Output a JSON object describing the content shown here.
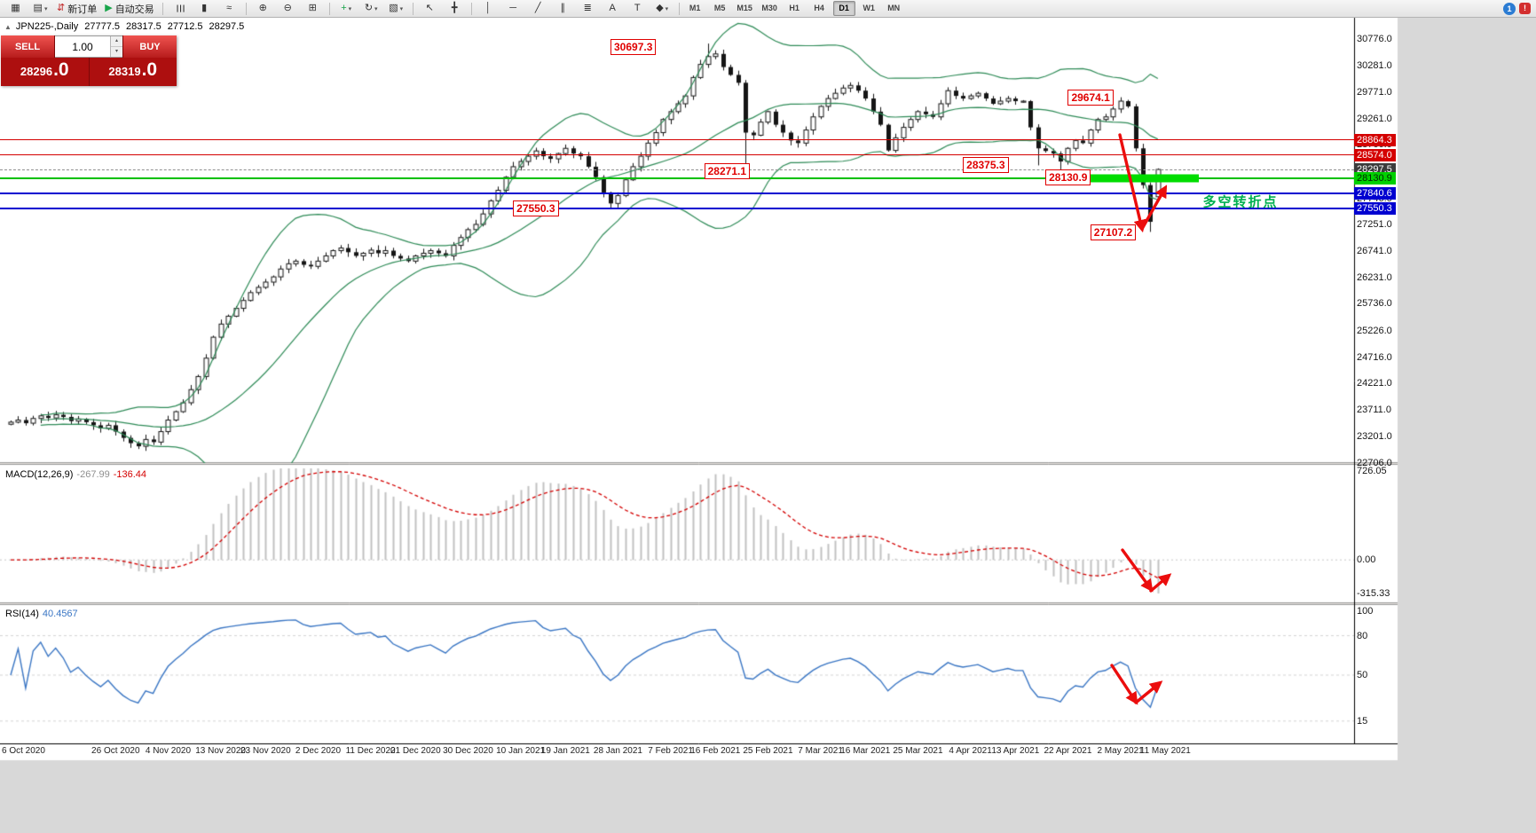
{
  "colors": {
    "accent_red": "#d40000",
    "annotation_red": "#e00000",
    "arrow_red": "#eb0d0d",
    "line_blue": "#0000d0",
    "line_green": "#00c000",
    "thick_bar_green": "#00dd00",
    "bb_green": "#2e8b57",
    "rsi_blue": "#3a76c4",
    "macd_signal": "#d40000",
    "hist_gray": "#c2c2c2"
  },
  "toolbar": {
    "caret_glyph": "▾",
    "items": [
      {
        "name": "new-chart",
        "glyph": "▦"
      },
      {
        "name": "profiles",
        "glyph": "▤",
        "caret": true
      },
      {
        "name": "new-order",
        "glyph": "⇵",
        "label": "新订单",
        "glyph_color": "#c02020"
      },
      {
        "name": "auto-trading",
        "glyph": "▶",
        "label": "自动交易",
        "glyph_color": "#18a54a"
      },
      {
        "sep": true
      },
      {
        "name": "bars-mode",
        "glyph": "☰",
        "rot": true
      },
      {
        "name": "candles-mode",
        "glyph": "▮"
      },
      {
        "name": "line-mode",
        "glyph": "≈"
      },
      {
        "sep": true
      },
      {
        "name": "zoom-in",
        "glyph": "⊕"
      },
      {
        "name": "zoom-out",
        "glyph": "⊖"
      },
      {
        "name": "tile-windows",
        "glyph": "⊞"
      },
      {
        "sep": true
      },
      {
        "name": "indicators",
        "glyph": "+",
        "glyph_color": "#18a54a",
        "caret": true
      },
      {
        "name": "periods",
        "glyph": "↻",
        "caret": true
      },
      {
        "name": "templates",
        "glyph": "▧",
        "caret": true
      },
      {
        "sep": true
      },
      {
        "name": "cursor",
        "glyph": "↖"
      },
      {
        "name": "crosshair",
        "glyph": "╋"
      },
      {
        "sep": true
      },
      {
        "name": "vertical-line",
        "glyph": "│"
      },
      {
        "name": "horizontal-line",
        "glyph": "─"
      },
      {
        "name": "trendline",
        "glyph": "╱"
      },
      {
        "name": "channel",
        "glyph": "∥"
      },
      {
        "name": "fibonacci",
        "glyph": "≣"
      },
      {
        "name": "text",
        "glyph": "A"
      },
      {
        "name": "text-label",
        "glyph": "T"
      },
      {
        "name": "shapes",
        "glyph": "◆",
        "caret": true
      },
      {
        "sep": true
      }
    ],
    "timeframes": [
      {
        "label": "M1"
      },
      {
        "label": "M5"
      },
      {
        "label": "M15"
      },
      {
        "label": "M30"
      },
      {
        "label": "H1"
      },
      {
        "label": "H4"
      },
      {
        "label": "D1",
        "active": true
      },
      {
        "label": "W1"
      },
      {
        "label": "MN"
      }
    ],
    "right": [
      {
        "name": "chart-profile-badge",
        "label": "1"
      },
      {
        "name": "notification",
        "label": "!"
      }
    ]
  },
  "quote": {
    "collapse_icon": "▲",
    "symbol": "JPN225-,Daily",
    "open": "27777.5",
    "high": "28317.5",
    "low": "27712.5",
    "close": "28297.5"
  },
  "one_click": {
    "sell_label": "SELL",
    "buy_label": "BUY",
    "volume": "1.00",
    "spin_up": "▴",
    "spin_down": "▾",
    "sell_price_int": "28296",
    "sell_price_dec": ".0",
    "buy_price_int": "28319",
    "buy_price_dec": ".0"
  },
  "chart_data": {
    "type": "candlestick",
    "title": "JPN225- Daily",
    "symbol": "JPN225-",
    "period": "Daily",
    "ylim": [
      22700,
      31190
    ],
    "closes": [
      23480,
      23520,
      23460,
      23550,
      23600,
      23560,
      23620,
      23580,
      23500,
      23540,
      23480,
      23420,
      23360,
      23420,
      23300,
      23180,
      23080,
      23020,
      23150,
      23100,
      23300,
      23520,
      23680,
      23850,
      24100,
      24350,
      24700,
      25100,
      25350,
      25500,
      25650,
      25800,
      25950,
      26050,
      26150,
      26250,
      26400,
      26500,
      26550,
      26480,
      26450,
      26550,
      26650,
      26750,
      26800,
      26720,
      26650,
      26700,
      26760,
      26700,
      26750,
      26650,
      26600,
      26550,
      26650,
      26700,
      26750,
      26700,
      26650,
      26850,
      27000,
      27150,
      27250,
      27450,
      27700,
      27900,
      28150,
      28350,
      28450,
      28550,
      28650,
      28550,
      28500,
      28600,
      28700,
      28600,
      28550,
      28350,
      28150,
      27850,
      27650,
      27800,
      28100,
      28350,
      28550,
      28800,
      29000,
      29250,
      29400,
      29550,
      29700,
      30050,
      30300,
      30450,
      30500,
      30250,
      30100,
      29950,
      29000,
      28950,
      29200,
      29400,
      29150,
      29000,
      28850,
      28800,
      29050,
      29300,
      29500,
      29650,
      29750,
      29850,
      29900,
      29800,
      29650,
      29400,
      29150,
      28660,
      28900,
      29100,
      29250,
      29400,
      29350,
      29300,
      29550,
      29800,
      29700,
      29650,
      29700,
      29750,
      29650,
      29550,
      29600,
      29650,
      29600,
      29600,
      29100,
      28700,
      28650,
      28600,
      28450,
      28700,
      28850,
      28800,
      29050,
      29250,
      29300,
      29450,
      29600,
      29500,
      28700,
      28000,
      27300,
      28297.5
    ],
    "overrides": [
      {
        "i": 80,
        "low": 27550.3
      },
      {
        "i": 93,
        "high": 30697.3
      },
      {
        "i": 98,
        "low": 28271.1
      },
      {
        "i": 137,
        "low": 28375.3
      },
      {
        "i": 140,
        "low": 28130.9
      },
      {
        "i": 148,
        "high": 29674.1
      },
      {
        "i": 152,
        "low": 27107.2
      },
      {
        "i": 153,
        "open": 27777.5,
        "high": 28317.5,
        "low": 27712.5,
        "close": 28297.5
      }
    ],
    "bollinger": {
      "period": 20,
      "deviation": 2
    },
    "macd": {
      "label": "MACD(12,26,9)",
      "value_main": "-267.99",
      "value_signal": "-136.44",
      "range": [
        -315.33,
        726.05
      ],
      "scale": [
        {
          "text": "726.05",
          "value": 726.05
        },
        {
          "text": "0.00",
          "value": 0
        },
        {
          "text": "-315.33",
          "value": -315.33
        }
      ]
    },
    "rsi": {
      "label": "RSI(14)",
      "value": "40.4567",
      "range": [
        0,
        100
      ],
      "scale": [
        {
          "text": "100",
          "value": 100
        },
        {
          "text": "80",
          "value": 80
        },
        {
          "text": "50",
          "value": 50
        },
        {
          "text": "15",
          "value": 15
        }
      ]
    },
    "price_axis": {
      "labels": [
        {
          "text": "30776.0",
          "price": 30776.0
        },
        {
          "text": "30281.0",
          "price": 30281.0
        },
        {
          "text": "29771.0",
          "price": 29771.0
        },
        {
          "text": "29261.0",
          "price": 29261.0
        },
        {
          "text": "28766.0",
          "price": 28766.0
        },
        {
          "text": "27746.0",
          "price": 27746.0
        },
        {
          "text": "27251.0",
          "price": 27251.0
        },
        {
          "text": "26741.0",
          "price": 26741.0
        },
        {
          "text": "26231.0",
          "price": 26231.0
        },
        {
          "text": "25736.0",
          "price": 25736.0
        },
        {
          "text": "25226.0",
          "price": 25226.0
        },
        {
          "text": "24716.0",
          "price": 24716.0
        },
        {
          "text": "24221.0",
          "price": 24221.0
        },
        {
          "text": "23711.0",
          "price": 23711.0
        },
        {
          "text": "23201.0",
          "price": 23201.0
        },
        {
          "text": "22706.0",
          "price": 22706.0
        }
      ],
      "badges": [
        {
          "text": "28864.3",
          "price": 28864.3,
          "bg": "#d40000",
          "fg": "#ffffff"
        },
        {
          "text": "28574.0",
          "price": 28574.0,
          "bg": "#d40000",
          "fg": "#ffffff"
        },
        {
          "text": "28297.5",
          "price": 28297.5,
          "bg": "#3c3c3c",
          "fg": "#ffffff"
        },
        {
          "text": "28130.9",
          "price": 28130.9,
          "bg": "#00d000",
          "fg": "#002800"
        },
        {
          "text": "27840.6",
          "price": 27840.6,
          "bg": "#0000d0",
          "fg": "#ffffff"
        },
        {
          "text": "27550.3",
          "price": 27550.3,
          "bg": "#0000d0",
          "fg": "#ffffff"
        }
      ]
    },
    "time_axis": {
      "labels": [
        {
          "text": "6 Oct 2020",
          "bar": 0
        },
        {
          "text": "26 Oct 2020",
          "bar": 14
        },
        {
          "text": "4 Nov 2020",
          "bar": 21
        },
        {
          "text": "13 Nov 2020",
          "bar": 28
        },
        {
          "text": "23 Nov 2020",
          "bar": 34
        },
        {
          "text": "2 Dec 2020",
          "bar": 41
        },
        {
          "text": "11 Dec 2020",
          "bar": 48
        },
        {
          "text": "21 Dec 2020",
          "bar": 54
        },
        {
          "text": "30 Dec 2020",
          "bar": 61
        },
        {
          "text": "10 Jan 2021",
          "bar": 68
        },
        {
          "text": "19 Jan 2021",
          "bar": 74
        },
        {
          "text": "28 Jan 2021",
          "bar": 81
        },
        {
          "text": "7 Feb 2021",
          "bar": 88
        },
        {
          "text": "16 Feb 2021",
          "bar": 94
        },
        {
          "text": "25 Feb 2021",
          "bar": 101
        },
        {
          "text": "7 Mar 2021",
          "bar": 108
        },
        {
          "text": "16 Mar 2021",
          "bar": 114
        },
        {
          "text": "25 Mar 2021",
          "bar": 121
        },
        {
          "text": "4 Apr 2021",
          "bar": 128
        },
        {
          "text": "13 Apr 2021",
          "bar": 134
        },
        {
          "text": "22 Apr 2021",
          "bar": 141
        },
        {
          "text": "2 May 2021",
          "bar": 148
        },
        {
          "text": "11 May 2021",
          "bar": 154
        }
      ]
    }
  },
  "objects": {
    "hlines": [
      {
        "name": "resistance-line-28864",
        "price": 28864.3,
        "color": "#d40000",
        "width": 1,
        "dash": false
      },
      {
        "name": "resistance-line-28574",
        "price": 28574.0,
        "color": "#d40000",
        "width": 1,
        "dash": false
      },
      {
        "name": "bid-price-line",
        "price": 28297.5,
        "color": "#909090",
        "width": 1,
        "dash": true
      },
      {
        "name": "pivot-line-28130",
        "price": 28130.9,
        "color": "#00c000",
        "width": 2,
        "dash": false
      },
      {
        "name": "support-line-27840",
        "price": 27840.6,
        "color": "#0000d0",
        "width": 2,
        "dash": false
      },
      {
        "name": "support-line-27550",
        "price": 27550.3,
        "color": "#0000d0",
        "width": 2,
        "dash": false
      }
    ],
    "thick_bar": {
      "price": 28130.9,
      "bar_start": 142.5,
      "bar_end": 158.5,
      "thickness": 9
    },
    "callouts": [
      {
        "text": "30697.3",
        "bar": 80,
        "price": 30640
      },
      {
        "text": "29674.1",
        "bar": 141,
        "price": 29660
      },
      {
        "text": "28271.1",
        "bar": 92.5,
        "price": 28271
      },
      {
        "text": "28375.3",
        "bar": 127,
        "price": 28390
      },
      {
        "text": "28130.9",
        "bar": 138,
        "price": 28150
      },
      {
        "text": "27550.3",
        "bar": 67,
        "price": 27560
      },
      {
        "text": "27107.2",
        "bar": 144,
        "price": 27100
      }
    ],
    "label_text": {
      "text": "多空转折点",
      "bar": 159,
      "price": 27690,
      "color": "#00b050"
    },
    "arrows": [
      {
        "name": "price-drop-arrow",
        "points": [
          [
            1262,
            152
          ],
          [
            1287,
            258
          ]
        ]
      },
      {
        "name": "price-bounce-arrow",
        "points": [
          [
            1287,
            258
          ],
          [
            1313,
            212
          ]
        ]
      },
      {
        "name": "macd-down-arrow",
        "points": [
          [
            1265,
            620
          ],
          [
            1297,
            664
          ]
        ]
      },
      {
        "name": "macd-hook-arrow",
        "points": [
          [
            1297,
            666
          ],
          [
            1317,
            649
          ]
        ]
      },
      {
        "name": "rsi-down-arrow",
        "points": [
          [
            1253,
            750
          ],
          [
            1280,
            791
          ]
        ]
      },
      {
        "name": "rsi-hook-arrow",
        "points": [
          [
            1280,
            792
          ],
          [
            1307,
            770
          ]
        ]
      }
    ]
  }
}
